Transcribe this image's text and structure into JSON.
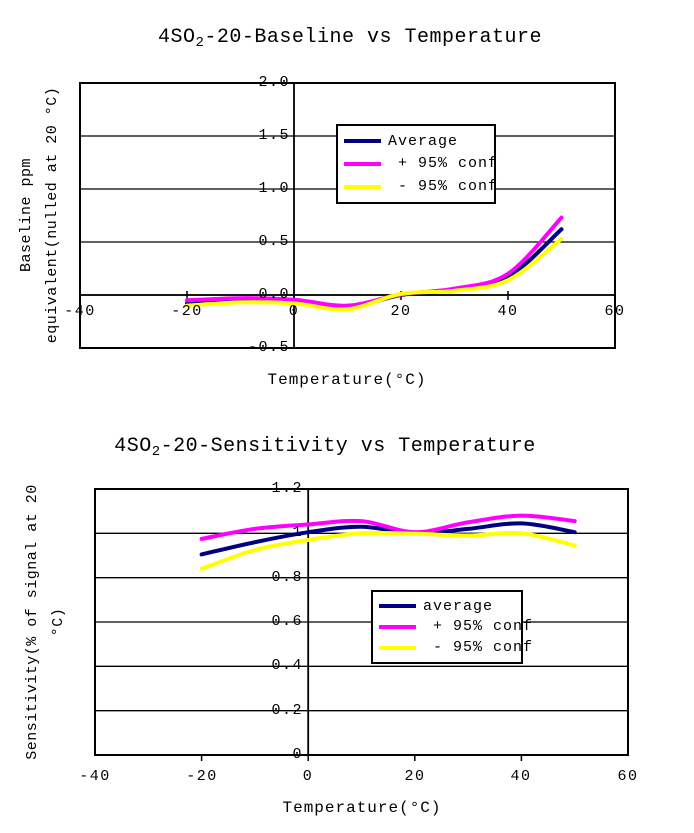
{
  "page": {
    "background": "#ffffff"
  },
  "colors": {
    "average": "#000080",
    "plus95": "#ff00ff",
    "minus95": "#ffff00",
    "axis": "#000000"
  },
  "chart_data": [
    {
      "type": "line",
      "title": "4SO₂-20-Baseline vs Temperature",
      "title_parts": {
        "prefix": "4SO",
        "sub": "2",
        "rest": "-20-Baseline vs Temperature"
      },
      "xlabel": "Temperature(°C)",
      "ylabel": "Baseline ppm equivalent(nulled at 20 °C)",
      "ylabel_lines": [
        "Baseline ppm",
        "equivalent(nulled at 20 °C)"
      ],
      "xlim": [
        -40,
        60
      ],
      "ylim": [
        -0.5,
        2.0
      ],
      "x_ticks": [
        -40,
        -20,
        0,
        20,
        40,
        60
      ],
      "x_tick_labels": [
        "-40",
        "-20",
        "0",
        "20",
        "40",
        "60"
      ],
      "y_ticks": [
        2.0,
        1.5,
        1.0,
        0.5,
        0.0,
        -0.5
      ],
      "y_tick_labels": [
        "2.0",
        "1.5",
        "1.0",
        "0.5",
        "0.0",
        "-0.5"
      ],
      "grid": "horizontal",
      "legend_position": "upper-center-inside",
      "smoothed": true,
      "x": [
        -20,
        -10,
        0,
        10,
        20,
        30,
        40,
        50
      ],
      "series": [
        {
          "name": "Average",
          "color": "#000080",
          "values": [
            -0.08,
            -0.05,
            -0.06,
            -0.115,
            0.0,
            0.05,
            0.17,
            0.62
          ]
        },
        {
          "name": " + 95% conf",
          "color": "#ff00ff",
          "values": [
            -0.05,
            -0.03,
            -0.045,
            -0.1,
            0.005,
            0.06,
            0.2,
            0.73
          ]
        },
        {
          "name": " - 95% conf",
          "color": "#ffff00",
          "values": [
            -0.1,
            -0.07,
            -0.08,
            -0.135,
            0.01,
            0.04,
            0.14,
            0.53
          ]
        }
      ]
    },
    {
      "type": "line",
      "title": "4SO₂-20-Sensitivity vs Temperature",
      "title_parts": {
        "prefix": "4SO",
        "sub": "2",
        "rest": "-20-Sensitivity vs Temperature"
      },
      "xlabel": "Temperature(°C)",
      "ylabel": "Sensitivity(% of signal at 20 °C)",
      "ylabel_lines": [
        "Sensitivity(% of signal at 20",
        "°C)"
      ],
      "xlim": [
        -40,
        60
      ],
      "ylim": [
        0,
        1.2
      ],
      "x_ticks": [
        -40,
        -20,
        0,
        20,
        40,
        60
      ],
      "x_tick_labels": [
        "-40",
        "-20",
        "0",
        "20",
        "40",
        "60"
      ],
      "y_ticks": [
        1.2,
        1.0,
        0.8,
        0.6,
        0.4,
        0.2,
        0
      ],
      "y_tick_labels": [
        "1.2",
        "1",
        "0.8",
        "0.6",
        "0.4",
        "0.2",
        "0"
      ],
      "grid": "horizontal",
      "legend_position": "middle-right-inside",
      "smoothed": true,
      "x": [
        -20,
        -10,
        0,
        10,
        20,
        30,
        40,
        50
      ],
      "series": [
        {
          "name": "average",
          "color": "#000080",
          "values": [
            0.905,
            0.96,
            1.005,
            1.03,
            1.0,
            1.02,
            1.045,
            1.005
          ]
        },
        {
          "name": " + 95% conf",
          "color": "#ff00ff",
          "values": [
            0.975,
            1.02,
            1.04,
            1.055,
            1.005,
            1.05,
            1.08,
            1.055
          ]
        },
        {
          "name": " - 95% conf",
          "color": "#ffff00",
          "values": [
            0.84,
            0.925,
            0.97,
            1.0,
            0.998,
            0.99,
            1.0,
            0.945
          ]
        }
      ]
    }
  ]
}
